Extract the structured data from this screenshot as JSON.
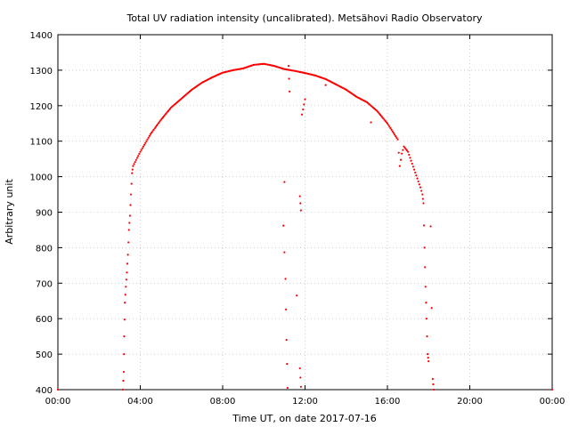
{
  "chart_data": {
    "type": "scatter",
    "title": "Total UV radiation intensity (uncalibrated). Metsähovi Radio Observatory",
    "xlabel": "Time UT, on date 2017-07-16",
    "ylabel": "Arbitrary unit",
    "xlim": [
      0,
      24
    ],
    "ylim": [
      400,
      1400
    ],
    "x_ticks": [
      "00:00",
      "04:00",
      "08:00",
      "12:00",
      "16:00",
      "20:00",
      "00:00"
    ],
    "y_ticks": [
      "400",
      "500",
      "600",
      "700",
      "800",
      "900",
      "1000",
      "1100",
      "1200",
      "1300",
      "1400"
    ],
    "grid": true,
    "marker_color": "#ff0000",
    "series": [
      {
        "values": [
          [
            0,
            400
          ],
          [
            3.15,
            400
          ],
          [
            3.2,
            450
          ],
          [
            3.22,
            550
          ],
          [
            3.25,
            645
          ],
          [
            3.3,
            690
          ],
          [
            3.35,
            730
          ],
          [
            3.4,
            780
          ],
          [
            3.45,
            850
          ],
          [
            3.5,
            890
          ],
          [
            3.55,
            950
          ],
          [
            3.6,
            1010
          ],
          [
            3.65,
            1030
          ],
          [
            4.0,
            1070
          ],
          [
            4.5,
            1120
          ],
          [
            5.0,
            1160
          ],
          [
            5.5,
            1195
          ],
          [
            6.0,
            1220
          ],
          [
            6.5,
            1245
          ],
          [
            7.0,
            1265
          ],
          [
            7.5,
            1280
          ],
          [
            8.0,
            1293
          ],
          [
            8.5,
            1300
          ],
          [
            9.0,
            1305
          ],
          [
            9.5,
            1315
          ],
          [
            10.0,
            1318
          ],
          [
            10.5,
            1312
          ],
          [
            11.0,
            1303
          ],
          [
            11.5,
            1298
          ],
          [
            12.0,
            1292
          ],
          [
            12.5,
            1285
          ],
          [
            13.0,
            1275
          ],
          [
            13.5,
            1260
          ],
          [
            14.0,
            1245
          ],
          [
            14.5,
            1225
          ],
          [
            15.0,
            1210
          ],
          [
            15.5,
            1185
          ],
          [
            16.0,
            1150
          ],
          [
            16.5,
            1105
          ],
          [
            16.6,
            1030
          ],
          [
            16.7,
            1065
          ],
          [
            16.8,
            1085
          ],
          [
            17.0,
            1070
          ],
          [
            17.3,
            1020
          ],
          [
            17.6,
            970
          ],
          [
            17.7,
            950
          ],
          [
            17.75,
            925
          ],
          [
            17.8,
            800
          ],
          [
            17.85,
            690
          ],
          [
            17.9,
            600
          ],
          [
            17.95,
            500
          ],
          [
            18.0,
            480
          ],
          [
            18.1,
            860
          ],
          [
            18.15,
            630
          ],
          [
            18.2,
            430
          ],
          [
            18.25,
            400
          ],
          [
            24,
            400
          ],
          [
            11.0,
            985
          ],
          [
            10.95,
            862
          ],
          [
            11.05,
            712
          ],
          [
            11.1,
            540
          ],
          [
            11.15,
            405
          ],
          [
            11.2,
            1312
          ],
          [
            11.25,
            1240
          ],
          [
            11.6,
            665
          ],
          [
            11.75,
            945
          ],
          [
            11.8,
            905
          ],
          [
            11.85,
            1175
          ],
          [
            12.0,
            1218
          ],
          [
            11.75,
            460
          ],
          [
            11.8,
            408
          ],
          [
            13.0,
            1258
          ],
          [
            15.2,
            1153
          ]
        ]
      }
    ]
  }
}
